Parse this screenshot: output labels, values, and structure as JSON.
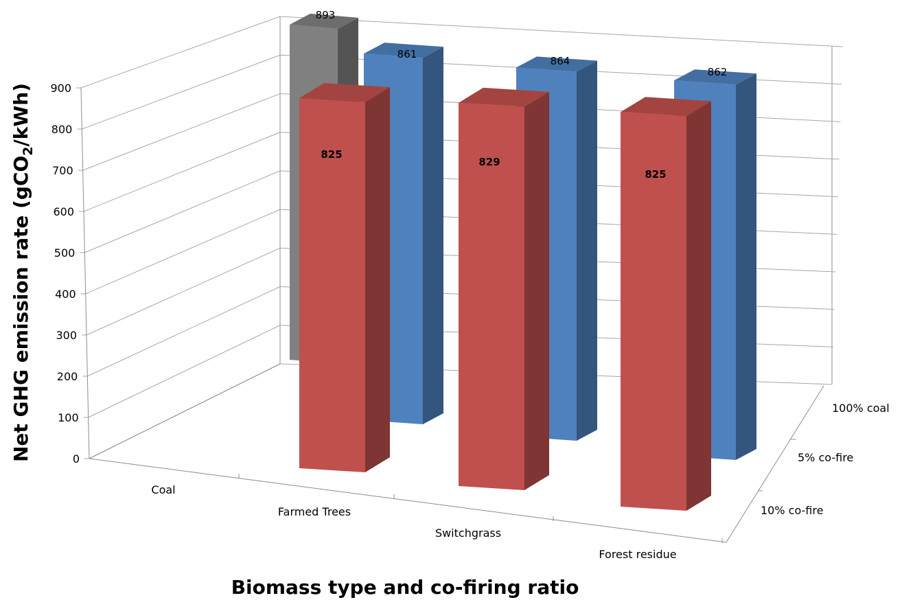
{
  "chart_data": {
    "type": "bar",
    "title": "",
    "xlabel": "Biomass type and co-firing ratio",
    "ylabel_prefix": "Net GHG emission rate (gCO",
    "ylabel_sub": "2",
    "ylabel_suffix": "/kWh)",
    "categories": [
      "Coal",
      "Farmed Trees",
      "Switchgrass",
      "Forest residue"
    ],
    "depth_categories": [
      "10% co-fire",
      "5% co-fire",
      "100% coal"
    ],
    "y_ticks": [
      "0",
      "100",
      "200",
      "300",
      "400",
      "500",
      "600",
      "700",
      "800",
      "900"
    ],
    "ylim": [
      0,
      900
    ],
    "series": [
      {
        "name": "100% coal",
        "color": "#808080",
        "values": [
          893,
          null,
          null,
          null
        ]
      },
      {
        "name": "5% co-fire",
        "color": "#4F81BD",
        "values": [
          null,
          861,
          864,
          862
        ]
      },
      {
        "name": "10% co-fire",
        "color": "#C0504D",
        "values": [
          null,
          825,
          829,
          825
        ]
      }
    ],
    "labels": {
      "coal": "893",
      "five_farmed": "861",
      "five_switch": "864",
      "five_forest": "862",
      "ten_farmed": "825",
      "ten_switch": "829",
      "ten_forest": "825"
    },
    "grid": true
  }
}
